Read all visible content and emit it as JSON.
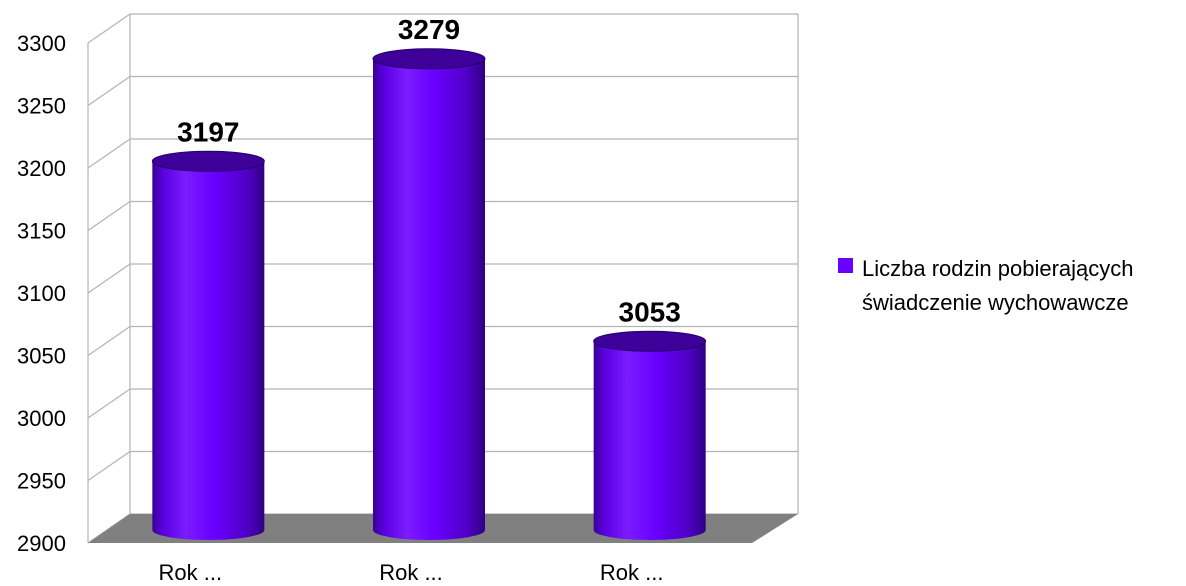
{
  "chart_data": {
    "type": "bar",
    "style": "3d-cylinder",
    "categories": [
      "Rok ...",
      "Rok ...",
      "Rok ..."
    ],
    "series": [
      {
        "name": "Liczba rodzin pobierających świadczenie wychowawcze",
        "values": [
          3197,
          3279,
          3053
        ]
      }
    ],
    "y_ticks": [
      2900,
      2950,
      3000,
      3050,
      3100,
      3150,
      3200,
      3250,
      3300
    ],
    "ylim": [
      2900,
      3300
    ],
    "grid": true,
    "legend_position": "right",
    "legend": {
      "lines": [
        "Liczba rodzin pobierających",
        "świadczenie wychowawcze"
      ]
    },
    "colors": {
      "bar_main": "#6a00ff",
      "bar_dark": "#2a007a",
      "bar_top": "#3d0098",
      "floor": "#808080",
      "grid": "#b3b3b3"
    }
  }
}
